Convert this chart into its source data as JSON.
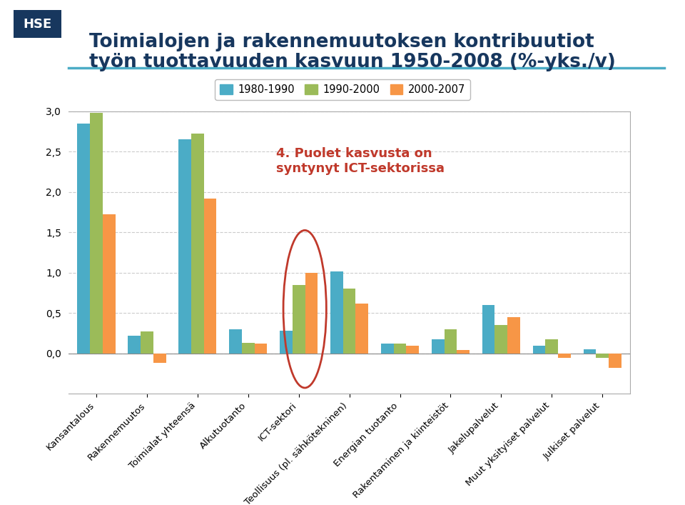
{
  "title_line1": "Toimialojen ja rakennemuutoksen kontribuutiot",
  "title_line2": "työn tuottavuuden kasvuun 1950-2008 (%-yks./v)",
  "categories": [
    "Kansantalous",
    "Rakennemuutos",
    "Toimialat yhteensä",
    "Alkutuotanto",
    "ICT-sektori",
    "Teollisuus (pl. sähkötekninen)",
    "Energian tuotanto",
    "Rakentaminen ja kiinteistöt",
    "Jakelupalvelut",
    "Muut yksityiset palvelut",
    "Julkiset palvelut"
  ],
  "series": {
    "1980-1990": [
      2.85,
      0.22,
      2.65,
      0.3,
      0.28,
      1.02,
      0.12,
      0.18,
      0.6,
      0.1,
      0.05
    ],
    "1990-2000": [
      2.98,
      0.27,
      2.72,
      0.13,
      0.85,
      0.8,
      0.12,
      0.3,
      0.35,
      0.18,
      -0.05
    ],
    "2000-2007": [
      1.72,
      -0.12,
      1.92,
      0.12,
      1.0,
      0.62,
      0.1,
      0.04,
      0.45,
      -0.05,
      -0.18
    ]
  },
  "colors": {
    "1980-1990": "#4bacc6",
    "1990-2000": "#9bbb59",
    "2000-2007": "#f79646"
  },
  "ylim": [
    -0.5,
    3.0
  ],
  "yticks": [
    0.0,
    0.5,
    1.0,
    1.5,
    2.0,
    2.5,
    3.0
  ],
  "annotation_text": "4. Puolet kasvusta on\nsyntynyt ICT-sektorissa",
  "annotation_color": "#c0392b",
  "background_color": "#ffffff",
  "plot_bg_color": "#ffffff",
  "title_color": "#17375e",
  "hse_box_color": "#17375e",
  "hse_text_color": "#ffffff",
  "grid_color": "#cccccc",
  "legend_labels": [
    "1980-1990",
    "1990-2000",
    "2000-2007"
  ],
  "separator_color": "#4bacc6"
}
